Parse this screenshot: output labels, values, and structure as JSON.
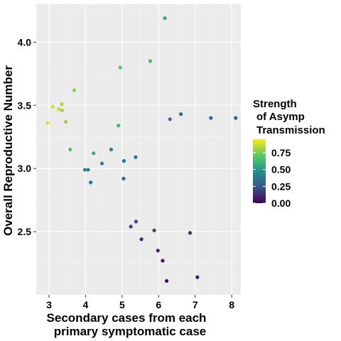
{
  "chart_data": {
    "type": "scatter",
    "xlabel_lines": [
      "Secondary cases from each",
      "primary symptomatic case"
    ],
    "ylabel": "Overall Reproductive Number",
    "xlim": [
      2.65,
      8.25
    ],
    "ylim": [
      2.0,
      4.3
    ],
    "x_ticks": [
      3,
      4,
      5,
      6,
      7,
      8
    ],
    "y_ticks": [
      2.5,
      3.0,
      3.5,
      4.0
    ],
    "x_tick_labels": [
      "3",
      "4",
      "5",
      "6",
      "7",
      "8"
    ],
    "y_tick_labels": [
      "2.5",
      "3.0",
      "3.5",
      "4.0"
    ],
    "legend": {
      "title_lines": [
        "Strength",
        "of Asymp",
        "Transmission"
      ],
      "range": [
        0,
        0.95
      ],
      "breaks": [
        0.75,
        0.5,
        0.25,
        0.0
      ],
      "break_labels": [
        "0.75",
        "0.50",
        "0.25",
        "0.00"
      ],
      "colors": [
        "#440154",
        "#3b528b",
        "#21908c",
        "#5dc863",
        "#fde725"
      ],
      "placement": "right"
    },
    "background": "#ebebeb",
    "grid": true,
    "points": [
      {
        "x": 2.96,
        "y": 3.36,
        "c": 0.9
      },
      {
        "x": 3.1,
        "y": 3.49,
        "c": 0.88
      },
      {
        "x": 3.27,
        "y": 3.47,
        "c": 0.86
      },
      {
        "x": 3.35,
        "y": 3.51,
        "c": 0.84
      },
      {
        "x": 3.36,
        "y": 3.46,
        "c": 0.82
      },
      {
        "x": 3.46,
        "y": 3.37,
        "c": 0.8
      },
      {
        "x": 3.69,
        "y": 3.62,
        "c": 0.78
      },
      {
        "x": 3.58,
        "y": 3.15,
        "c": 0.68
      },
      {
        "x": 4.95,
        "y": 3.8,
        "c": 0.7
      },
      {
        "x": 5.77,
        "y": 3.85,
        "c": 0.65
      },
      {
        "x": 6.17,
        "y": 4.19,
        "c": 0.55
      },
      {
        "x": 4.22,
        "y": 3.12,
        "c": 0.58
      },
      {
        "x": 4.9,
        "y": 3.34,
        "c": 0.62
      },
      {
        "x": 3.98,
        "y": 2.99,
        "c": 0.45
      },
      {
        "x": 4.07,
        "y": 2.99,
        "c": 0.42
      },
      {
        "x": 4.45,
        "y": 3.04,
        "c": 0.4
      },
      {
        "x": 4.7,
        "y": 3.15,
        "c": 0.42
      },
      {
        "x": 4.14,
        "y": 2.89,
        "c": 0.38
      },
      {
        "x": 5.05,
        "y": 3.06,
        "c": 0.38
      },
      {
        "x": 5.37,
        "y": 3.09,
        "c": 0.36
      },
      {
        "x": 5.04,
        "y": 2.92,
        "c": 0.33
      },
      {
        "x": 6.31,
        "y": 3.39,
        "c": 0.35
      },
      {
        "x": 6.61,
        "y": 3.43,
        "c": 0.33
      },
      {
        "x": 7.43,
        "y": 3.4,
        "c": 0.31
      },
      {
        "x": 8.11,
        "y": 3.4,
        "c": 0.29
      },
      {
        "x": 5.38,
        "y": 2.58,
        "c": 0.2
      },
      {
        "x": 5.24,
        "y": 2.54,
        "c": 0.18
      },
      {
        "x": 5.88,
        "y": 2.51,
        "c": 0.17
      },
      {
        "x": 6.86,
        "y": 2.49,
        "c": 0.14
      },
      {
        "x": 5.53,
        "y": 2.44,
        "c": 0.12
      },
      {
        "x": 5.98,
        "y": 2.35,
        "c": 0.1
      },
      {
        "x": 6.11,
        "y": 2.27,
        "c": 0.07
      },
      {
        "x": 7.06,
        "y": 2.14,
        "c": 0.05
      },
      {
        "x": 6.22,
        "y": 2.11,
        "c": 0.02
      }
    ]
  }
}
